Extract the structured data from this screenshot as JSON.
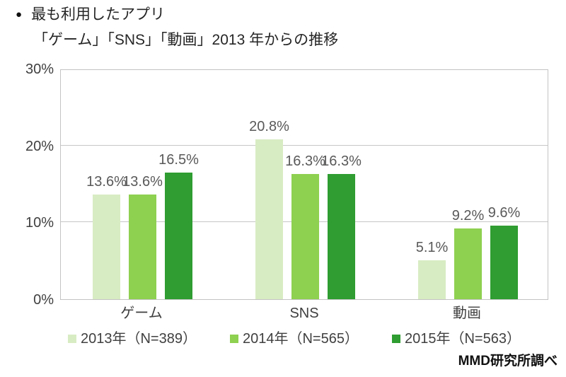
{
  "header": {
    "bullet": "●",
    "title": "最も利用したアプリ",
    "subtitle": "「ゲーム」「SNS」「動画」2013 年からの推移"
  },
  "chart_data": {
    "type": "bar",
    "title": "最も利用したアプリ 「ゲーム」「SNS」「動画」2013年からの推移",
    "categories": [
      "ゲーム",
      "SNS",
      "動画"
    ],
    "series": [
      {
        "name": "2013年（N=389）",
        "color": "#d8ecc3",
        "values": [
          13.6,
          20.8,
          5.1
        ]
      },
      {
        "name": "2014年（N=565）",
        "color": "#8ed050",
        "values": [
          13.6,
          16.3,
          9.2
        ]
      },
      {
        "name": "2015年（N=563）",
        "color": "#2f9d31",
        "values": [
          16.5,
          16.3,
          9.6
        ]
      }
    ],
    "value_suffix": "%",
    "xlabel": "",
    "ylabel": "",
    "ylim": [
      0,
      30
    ],
    "yticks": [
      0,
      10,
      20,
      30
    ],
    "ytick_labels": [
      "0%",
      "10%",
      "20%",
      "30%"
    ],
    "grid": true,
    "gridline_color": "#c6c6c6",
    "legend_position": "bottom",
    "data_label_color": "#595959"
  },
  "footer": {
    "source": "MMD研究所調べ"
  }
}
